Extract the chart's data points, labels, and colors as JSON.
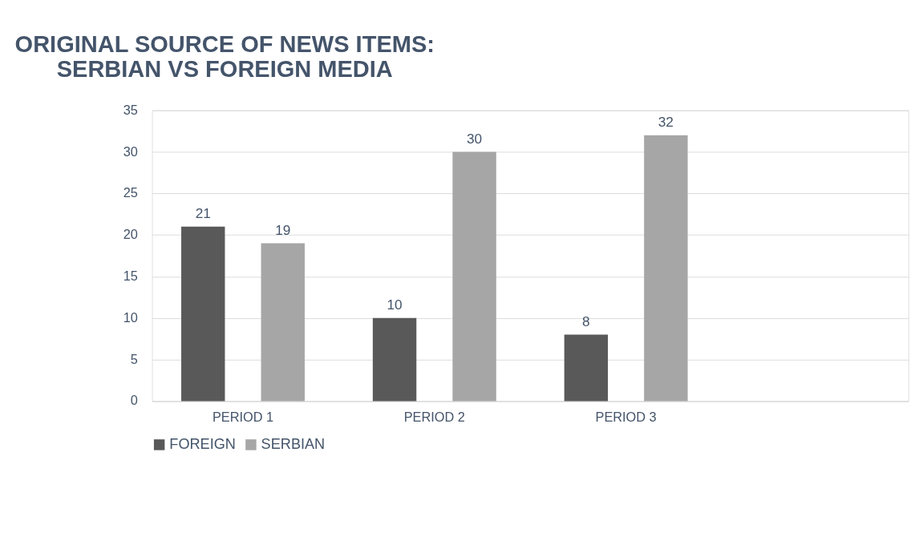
{
  "chart_data": {
    "type": "bar",
    "title": [
      "ORIGINAL SOURCE OF NEWS ITEMS:",
      "SERBIAN VS FOREIGN MEDIA"
    ],
    "categories": [
      "PERIOD 1",
      "PERIOD 2",
      "PERIOD 3",
      null
    ],
    "series": [
      {
        "name": "FOREIGN",
        "color": "#595959",
        "values": [
          21,
          10,
          8,
          null
        ]
      },
      {
        "name": "SERBIAN",
        "color": "#a6a6a6",
        "values": [
          19,
          30,
          32,
          null
        ]
      }
    ],
    "ylim": [
      0,
      35
    ],
    "yticks": [
      0,
      5,
      10,
      15,
      20,
      25,
      30,
      35
    ],
    "grid": "y",
    "legend": "bottom",
    "data_labels": true
  }
}
